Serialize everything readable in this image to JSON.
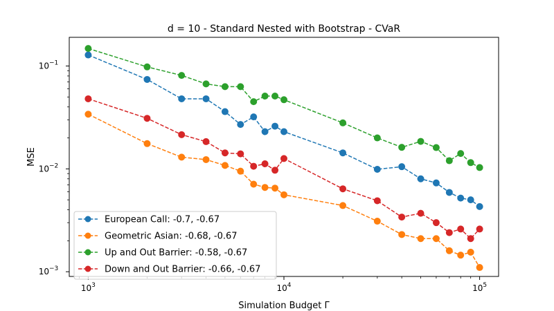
{
  "chart_data": {
    "type": "line",
    "title": "d = 10 - Standard Nested with Bootstrap - CVaR",
    "xlabel": "Simulation Budget Γ",
    "ylabel": "MSE",
    "xscale": "log",
    "yscale": "log",
    "xlim": [
      800,
      125000
    ],
    "ylim": [
      0.0009,
      0.19
    ],
    "grid": false,
    "legend_position": "lower-left",
    "x_ticks": [
      {
        "value": 1000,
        "base": "10",
        "exp": "3"
      },
      {
        "value": 10000,
        "base": "10",
        "exp": "4"
      },
      {
        "value": 100000,
        "base": "10",
        "exp": "5"
      }
    ],
    "y_ticks": [
      {
        "value": 0.001,
        "base": "10",
        "exp": "−3"
      },
      {
        "value": 0.01,
        "base": "10",
        "exp": "−2"
      },
      {
        "value": 0.1,
        "base": "10",
        "exp": "−1"
      }
    ],
    "x": [
      1000,
      2000,
      3000,
      4000,
      5000,
      6000,
      7000,
      8000,
      9000,
      10000,
      20000,
      30000,
      40000,
      50000,
      60000,
      70000,
      80000,
      90000,
      100000
    ],
    "series": [
      {
        "name": "European Call: -0.7, -0.67",
        "color": "#1f77b4",
        "values": [
          0.128,
          0.074,
          0.048,
          0.048,
          0.036,
          0.027,
          0.032,
          0.023,
          0.026,
          0.023,
          0.0143,
          0.0099,
          0.0105,
          0.008,
          0.0073,
          0.0059,
          0.0052,
          0.005,
          0.0043
        ]
      },
      {
        "name": "Geometric Asian: -0.68, -0.67",
        "color": "#ff7f0e",
        "values": [
          0.034,
          0.0176,
          0.013,
          0.0123,
          0.0108,
          0.0095,
          0.0071,
          0.0066,
          0.0065,
          0.0056,
          0.0044,
          0.0031,
          0.0023,
          0.0021,
          0.0021,
          0.0016,
          0.00145,
          0.00155,
          0.0011
        ]
      },
      {
        "name": "Up and Out Barrier: -0.58, -0.67",
        "color": "#2ca02c",
        "values": [
          0.148,
          0.098,
          0.081,
          0.067,
          0.063,
          0.063,
          0.045,
          0.051,
          0.051,
          0.047,
          0.028,
          0.02,
          0.0162,
          0.0185,
          0.0161,
          0.012,
          0.0141,
          0.0115,
          0.0103
        ]
      },
      {
        "name": "Down and Out Barrier: -0.66, -0.67",
        "color": "#d62728",
        "values": [
          0.048,
          0.031,
          0.0215,
          0.0184,
          0.0143,
          0.014,
          0.0106,
          0.0112,
          0.0097,
          0.0126,
          0.0064,
          0.0049,
          0.0034,
          0.0037,
          0.003,
          0.0024,
          0.0026,
          0.0021,
          0.0026
        ]
      }
    ]
  }
}
